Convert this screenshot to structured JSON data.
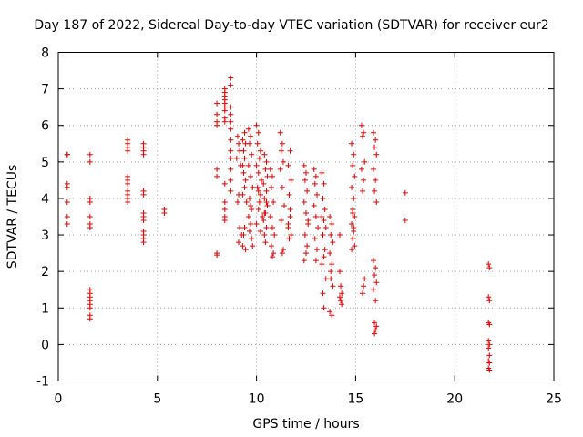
{
  "chart_data": {
    "type": "scatter",
    "title": "Day 187 of 2022, Sidereal Day-to-day VTEC variation (SDTVAR) for receiver eur2",
    "xlabel": "GPS time / hours",
    "ylabel": "SDTVAR / TECUs",
    "xlim": [
      0,
      25
    ],
    "ylim": [
      -1,
      8
    ],
    "xticks": [
      "0",
      "5",
      "10",
      "15",
      "20",
      "25"
    ],
    "yticks": [
      "-1",
      "0",
      "1",
      "2",
      "3",
      "4",
      "5",
      "6",
      "7",
      "8"
    ],
    "grid": true,
    "marker": "plus",
    "marker_color": "#e00000",
    "grid_color": "#a0a0a0",
    "x": [
      0.45,
      0.45,
      0.45,
      0.45,
      0.45,
      0.45,
      0.45,
      1.6,
      1.6,
      1.6,
      1.6,
      1.6,
      1.6,
      1.6,
      1.6,
      1.6,
      1.6,
      1.6,
      1.6,
      1.6,
      1.6,
      1.6,
      3.5,
      3.5,
      3.5,
      3.5,
      3.5,
      3.5,
      3.5,
      3.5,
      3.5,
      3.5,
      3.5,
      4.3,
      4.3,
      4.3,
      4.3,
      4.3,
      4.3,
      4.3,
      4.3,
      4.3,
      4.3,
      4.3,
      4.3,
      4.3,
      5.35,
      5.35,
      8.0,
      8.0,
      8.0,
      8.0,
      8.0,
      8.0,
      8.0,
      8.0,
      8.4,
      8.4,
      8.4,
      8.4,
      8.4,
      8.4,
      8.4,
      8.4,
      8.4,
      8.4,
      8.4,
      8.4,
      8.4,
      8.4,
      8.7,
      8.7,
      8.7,
      8.7,
      8.7,
      8.7,
      8.7,
      8.7,
      8.7,
      8.7,
      8.7,
      8.7,
      9.05,
      9.1,
      9.15,
      9.0,
      9.2,
      9.1,
      9.05,
      9.15,
      9.25,
      9.1,
      9.4,
      9.3,
      9.45,
      9.35,
      9.4,
      9.3,
      9.35,
      9.45,
      9.4,
      9.3,
      9.5,
      9.4,
      9.35,
      9.3,
      9.45,
      9.6,
      9.7,
      9.65,
      9.75,
      9.6,
      9.7,
      9.8,
      9.65,
      9.75,
      9.6,
      9.7,
      9.65,
      9.75,
      9.8,
      9.7,
      10.0,
      10.1,
      10.05,
      10.2,
      10.15,
      10.0,
      10.1,
      10.25,
      10.05,
      10.2,
      10.15,
      10.1,
      10.3,
      10.0,
      10.2,
      10.1,
      10.4,
      10.5,
      10.45,
      10.35,
      10.5,
      10.4,
      10.55,
      10.45,
      10.35,
      10.5,
      10.4,
      10.45,
      10.55,
      10.5,
      10.4,
      10.7,
      10.8,
      10.75,
      10.85,
      10.7,
      10.8,
      10.9,
      10.75,
      10.85,
      10.8,
      11.2,
      11.3,
      11.25,
      11.35,
      11.2,
      11.3,
      11.4,
      11.25,
      11.35,
      11.3,
      11.7,
      11.6,
      11.75,
      11.65,
      11.7,
      11.6,
      11.75,
      11.65,
      11.7,
      11.6,
      12.4,
      12.5,
      12.45,
      12.55,
      12.4,
      12.5,
      12.6,
      12.45,
      12.55,
      12.5,
      12.4,
      12.6,
      12.9,
      13.0,
      12.95,
      13.05,
      12.9,
      13.0,
      13.1,
      12.95,
      13.05,
      13.0,
      13.3,
      13.4,
      13.35,
      13.45,
      13.3,
      13.4,
      13.5,
      13.35,
      13.45,
      13.4,
      13.3,
      13.5,
      13.35,
      13.4,
      13.7,
      13.8,
      13.75,
      13.85,
      13.7,
      13.8,
      13.75,
      13.85,
      13.7,
      13.8,
      13.75,
      14.2,
      14.25,
      14.3,
      14.2,
      14.25,
      14.3,
      14.2,
      14.8,
      14.9,
      14.85,
      14.95,
      14.8,
      14.9,
      14.85,
      14.95,
      14.8,
      14.9,
      14.85,
      14.95,
      14.8,
      14.9,
      14.85,
      15.3,
      15.4,
      15.35,
      15.45,
      15.3,
      15.4,
      15.35,
      15.45,
      15.4,
      15.35,
      15.9,
      16.0,
      15.95,
      16.05,
      15.9,
      16.0,
      15.95,
      16.05,
      15.9,
      16.0,
      15.95,
      16.05,
      15.9,
      16.0,
      15.95,
      16.05,
      16.0,
      15.95,
      17.5,
      17.5,
      21.7,
      21.75,
      21.7,
      21.75,
      21.7,
      21.75,
      21.7,
      21.75,
      21.7,
      21.75,
      21.7,
      21.75,
      21.7,
      21.75
    ],
    "y": [
      5.2,
      4.4,
      4.3,
      3.9,
      3.5,
      3.3,
      5.2,
      5.2,
      5.0,
      4.0,
      3.9,
      3.5,
      3.3,
      3.2,
      1.5,
      1.4,
      1.3,
      1.2,
      1.1,
      1.0,
      0.8,
      0.7,
      5.6,
      5.5,
      5.3,
      4.6,
      4.5,
      4.4,
      4.2,
      4.1,
      4.0,
      3.9,
      5.4,
      5.5,
      5.4,
      5.3,
      5.2,
      4.2,
      4.1,
      3.6,
      3.5,
      3.4,
      3.1,
      3.0,
      2.9,
      2.8,
      3.7,
      3.6,
      6.6,
      6.3,
      6.1,
      6.0,
      4.8,
      4.6,
      2.5,
      2.45,
      7.0,
      6.9,
      6.8,
      6.7,
      6.6,
      6.5,
      6.4,
      6.2,
      6.1,
      4.4,
      3.9,
      3.7,
      3.5,
      3.4,
      7.3,
      7.1,
      6.5,
      6.3,
      6.1,
      5.9,
      5.6,
      5.3,
      5.1,
      4.8,
      4.5,
      4.2,
      5.7,
      5.5,
      5.3,
      5.1,
      4.9,
      4.1,
      3.9,
      3.2,
      3.0,
      2.8,
      5.8,
      5.6,
      5.5,
      5.3,
      5.1,
      4.9,
      4.7,
      4.5,
      4.3,
      4.1,
      3.9,
      3.2,
      3.0,
      2.7,
      2.6,
      5.9,
      5.7,
      5.5,
      5.2,
      4.9,
      4.6,
      4.3,
      4.0,
      3.7,
      3.5,
      3.3,
      3.1,
      2.9,
      2.7,
      3.8,
      6.0,
      5.8,
      5.5,
      5.3,
      5.1,
      4.9,
      4.7,
      4.5,
      4.3,
      4.1,
      3.9,
      3.7,
      3.5,
      3.3,
      3.1,
      4.2,
      5.2,
      5.0,
      4.8,
      4.4,
      4.2,
      4.0,
      3.8,
      3.6,
      3.4,
      3.2,
      3.0,
      2.8,
      4.6,
      3.9,
      3.6,
      4.8,
      4.6,
      4.3,
      3.9,
      3.5,
      3.2,
      3.0,
      2.7,
      2.5,
      2.4,
      5.8,
      5.5,
      5.3,
      5.0,
      4.8,
      4.3,
      3.8,
      3.4,
      2.6,
      2.5,
      5.3,
      4.9,
      4.5,
      4.1,
      3.7,
      3.3,
      3.0,
      2.9,
      3.5,
      3.2,
      4.9,
      4.7,
      4.5,
      4.2,
      3.9,
      3.6,
      3.3,
      3.0,
      2.7,
      2.5,
      2.3,
      3.4,
      4.8,
      4.6,
      4.4,
      4.1,
      3.8,
      3.5,
      3.2,
      2.9,
      2.6,
      2.3,
      4.7,
      4.4,
      4.0,
      3.7,
      3.5,
      3.4,
      3.2,
      3.0,
      2.6,
      2.4,
      2.2,
      1.8,
      1.4,
      1.0,
      3.5,
      3.3,
      3.0,
      2.8,
      2.5,
      2.2,
      1.8,
      1.6,
      0.9,
      0.8,
      2.0,
      2.0,
      1.6,
      1.4,
      1.3,
      1.2,
      1.1,
      3.0,
      5.5,
      5.2,
      4.9,
      4.6,
      4.3,
      4.0,
      3.7,
      3.5,
      3.3,
      3.1,
      2.9,
      2.7,
      2.6,
      3.2,
      3.6,
      6.0,
      5.8,
      5.7,
      5.0,
      4.8,
      4.5,
      4.2,
      1.8,
      1.6,
      1.4,
      5.8,
      5.6,
      5.4,
      5.2,
      4.8,
      4.5,
      4.2,
      3.9,
      2.3,
      2.1,
      1.9,
      1.7,
      1.5,
      1.2,
      0.6,
      0.5,
      0.4,
      0.3,
      4.15,
      3.4,
      2.2,
      2.1,
      1.3,
      1.2,
      0.6,
      0.55,
      0.1,
      0.0,
      -0.1,
      -0.3,
      -0.45,
      -0.5,
      -0.65,
      -0.7
    ]
  }
}
